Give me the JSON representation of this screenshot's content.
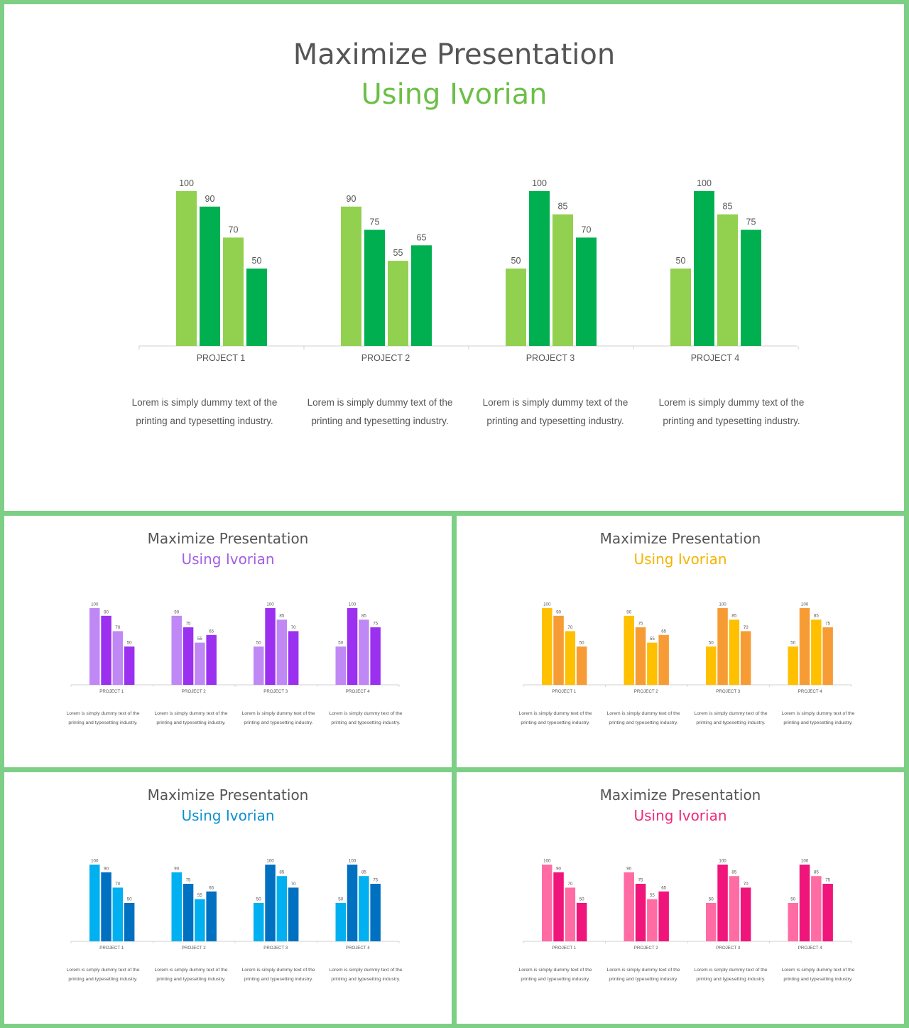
{
  "slides": [
    {
      "title": "Maximize Presentation",
      "subtitle": "Using Ivorian",
      "accent": "#6cbf47",
      "colors": [
        "#92d050",
        "#00b050"
      ],
      "descriptions": [
        "Lorem is simply dummy text of the printing and typesetting industry.",
        "Lorem is simply dummy text of the printing and typesetting industry.",
        "Lorem is simply dummy text of the printing and typesetting industry.",
        "Lorem is simply dummy text of the printing and typesetting industry."
      ]
    },
    {
      "title": "Maximize Presentation",
      "subtitle": "Using Ivorian",
      "accent": "#a45ee5",
      "colors": [
        "#bf88f5",
        "#9b30f0"
      ],
      "descriptions": [
        "Lorem is simply dummy text of the printing and typesetting industry.",
        "Lorem is simply dummy text of the printing and typesetting industry.",
        "Lorem is simply dummy text of the printing and typesetting industry.",
        "Lorem is simply dummy text of the printing and typesetting industry."
      ]
    },
    {
      "title": "Maximize Presentation",
      "subtitle": "Using Ivorian",
      "accent": "#f5b400",
      "colors": [
        "#ffc000",
        "#f79c34"
      ],
      "descriptions": [
        "Lorem is simply dummy text of the printing and typesetting industry.",
        "Lorem is simply dummy text of the printing and typesetting industry.",
        "Lorem is simply dummy text of the printing and typesetting industry.",
        "Lorem is simply dummy text of the printing and typesetting industry."
      ]
    },
    {
      "title": "Maximize Presentation",
      "subtitle": "Using Ivorian",
      "accent": "#0c8fd0",
      "colors": [
        "#00b0f0",
        "#0070c0"
      ],
      "descriptions": [
        "Lorem is simply dummy text of the printing and typesetting industry.",
        "Lorem is simply dummy text of the printing and typesetting industry.",
        "Lorem is simply dummy text of the printing and typesetting industry.",
        "Lorem is simply dummy text of the printing and typesetting industry."
      ]
    },
    {
      "title": "Maximize Presentation",
      "subtitle": "Using Ivorian",
      "accent": "#f0287a",
      "colors": [
        "#ff6ca4",
        "#f0157a"
      ],
      "descriptions": [
        "Lorem is simply dummy text of the printing and typesetting industry.",
        "Lorem is simply dummy text of the printing and typesetting industry.",
        "Lorem is simply dummy text of the printing and typesetting industry.",
        "Lorem is simply dummy text of the printing and typesetting industry."
      ]
    }
  ],
  "chart_data": {
    "type": "bar",
    "categories": [
      "PROJECT 1",
      "PROJECT 2",
      "PROJECT 3",
      "PROJECT 4"
    ],
    "ylim": [
      0,
      100
    ],
    "series": [
      {
        "values": [
          100,
          90,
          50,
          50
        ]
      },
      {
        "values": [
          90,
          75,
          100,
          100
        ]
      },
      {
        "values": [
          70,
          55,
          85,
          85
        ]
      },
      {
        "values": [
          50,
          65,
          70,
          75
        ]
      }
    ],
    "data_labels": true,
    "grid": false,
    "legend": "none"
  }
}
